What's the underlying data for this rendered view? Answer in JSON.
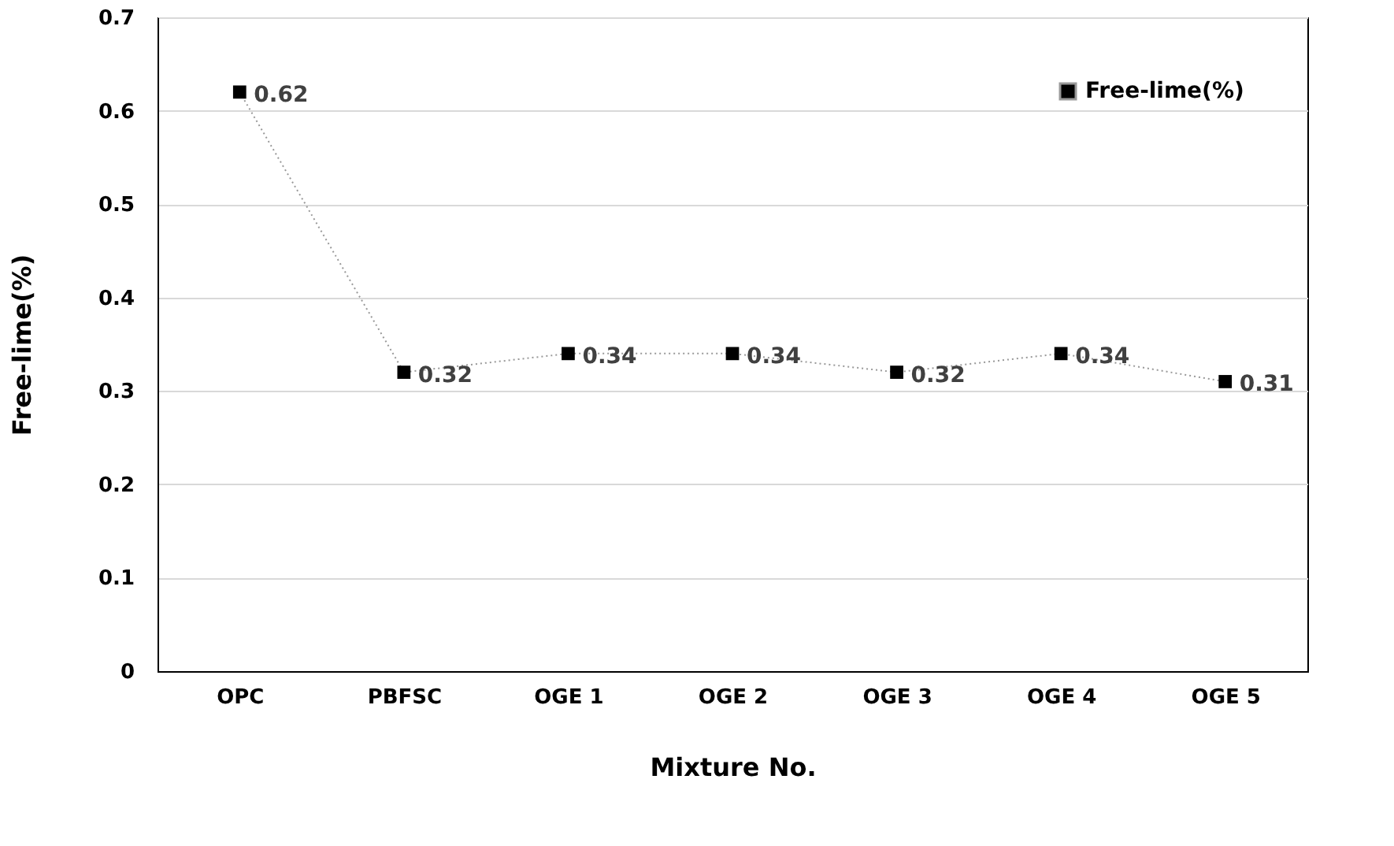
{
  "chart_data": {
    "type": "line",
    "xlabel": "Mixture No.",
    "ylabel": "Free-lime(%)",
    "categories": [
      "OPC",
      "PBFSC",
      "OGE 1",
      "OGE 2",
      "OGE 3",
      "OGE 4",
      "OGE 5"
    ],
    "series": [
      {
        "name": "Free-lime(%)",
        "color": "#000000",
        "values": [
          0.62,
          0.32,
          0.34,
          0.34,
          0.32,
          0.34,
          0.31
        ]
      }
    ],
    "ylim": [
      0,
      0.7
    ],
    "yticks": [
      0,
      0.1,
      0.2,
      0.3,
      0.4,
      0.5,
      0.6,
      0.7
    ],
    "grid": "y",
    "legend": "top right",
    "marker": "square",
    "line_style": "dotted",
    "data_labels": true
  }
}
